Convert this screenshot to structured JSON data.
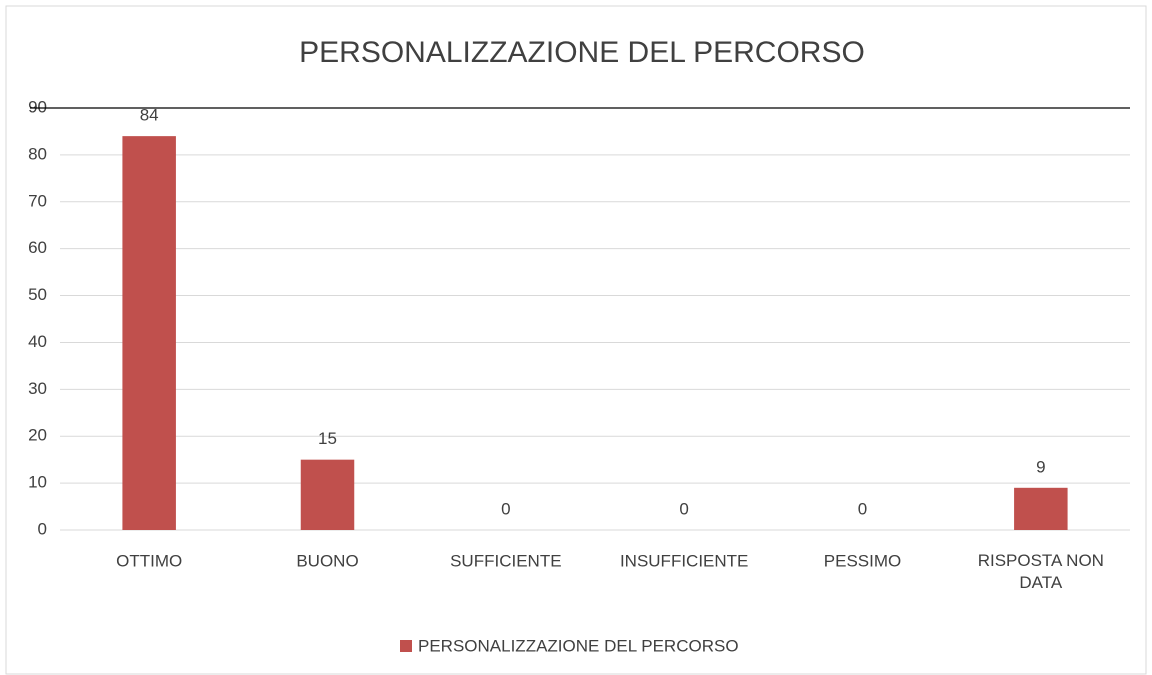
{
  "chart_data": {
    "type": "bar",
    "title": "PERSONALIZZAZIONE DEL PERCORSO",
    "categories": [
      "OTTIMO",
      "BUONO",
      "SUFFICIENTE",
      "INSUFFICIENTE",
      "PESSIMO",
      "RISPOSTA NON DATA"
    ],
    "series": [
      {
        "name": "PERSONALIZZAZIONE DEL PERCORSO",
        "color": "#c0504d",
        "values": [
          84,
          15,
          0,
          0,
          0,
          9
        ]
      }
    ],
    "ylim": [
      0,
      90
    ],
    "yticks": [
      0,
      10,
      20,
      30,
      40,
      50,
      60,
      70,
      80,
      90
    ],
    "grid": true,
    "legend": "bottom"
  }
}
